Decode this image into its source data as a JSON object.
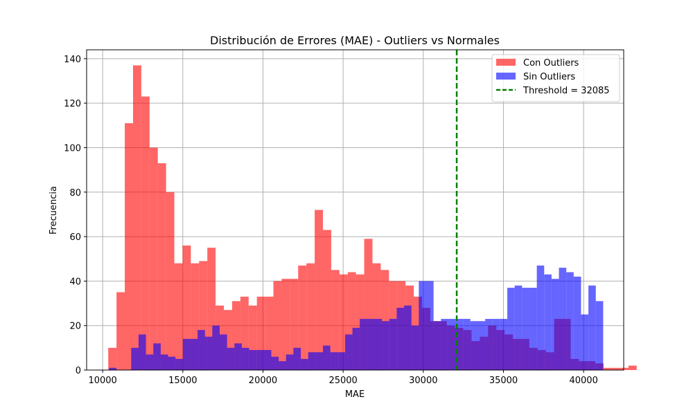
{
  "chart_data": {
    "type": "bar",
    "title": "Distribución de Errores (MAE) - Outliers vs Normales",
    "xlabel": "MAE",
    "ylabel": "Frecuencia",
    "xlim": [
      9000,
      42500
    ],
    "ylim": [
      0,
      144
    ],
    "xticks": [
      10000,
      15000,
      20000,
      25000,
      30000,
      35000,
      40000
    ],
    "yticks": [
      0,
      20,
      40,
      60,
      80,
      100,
      120,
      140
    ],
    "grid": true,
    "legend_position": "top-right",
    "series": [
      {
        "name": "Con Outliers",
        "color": "#ff0000",
        "alpha": 0.6,
        "bin_start": 10350,
        "bin_width": 515,
        "values": [
          10,
          35,
          111,
          137,
          123,
          100,
          93,
          80,
          48,
          56,
          48,
          49,
          55,
          29,
          27,
          31,
          33,
          29,
          33,
          33,
          40,
          41,
          41,
          47,
          48,
          72,
          63,
          45,
          43,
          44,
          43,
          59,
          48,
          45,
          40,
          40,
          38,
          33,
          28,
          22,
          22,
          20,
          19,
          18,
          13,
          15,
          20,
          18,
          16,
          14,
          14,
          10,
          9,
          8,
          23,
          23,
          5,
          4,
          4,
          3,
          1,
          1,
          1,
          2
        ]
      },
      {
        "name": "Sin Outliers",
        "color": "#0000ff",
        "alpha": 0.6,
        "bin_start": 10400,
        "bin_width": 460,
        "values": [
          1,
          0,
          0,
          10,
          16,
          7,
          12,
          7,
          6,
          5,
          14,
          14,
          18,
          15,
          20,
          16,
          10,
          12,
          10,
          9,
          9,
          9,
          6,
          4,
          7,
          10,
          5,
          8,
          8,
          11,
          8,
          8,
          16,
          19,
          23,
          23,
          23,
          22,
          23,
          28,
          29,
          20,
          40,
          40,
          22,
          23,
          23,
          23,
          23,
          22,
          22,
          23,
          23,
          23,
          37,
          38,
          37,
          37,
          47,
          43,
          41,
          46,
          44,
          42,
          25,
          38,
          31
        ]
      }
    ],
    "threshold": {
      "label": "Threshold = 32085",
      "value": 32085,
      "color": "#008000"
    }
  }
}
